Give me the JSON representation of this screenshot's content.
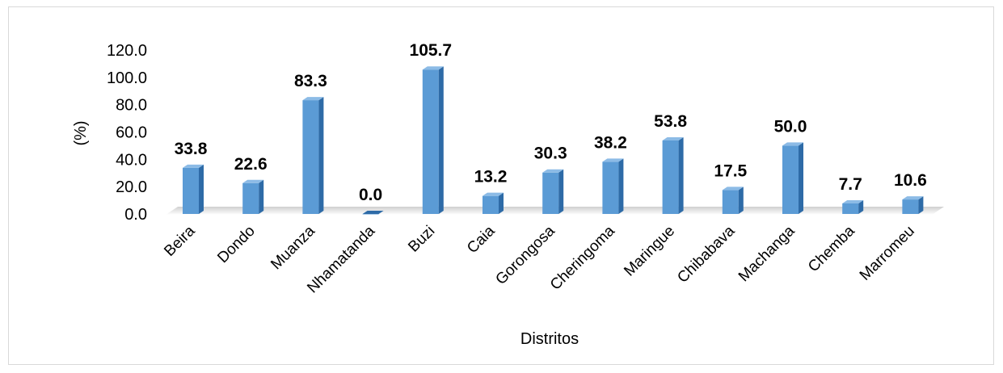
{
  "chart_data": {
    "type": "bar",
    "title": "",
    "xlabel": "Distritos",
    "ylabel": "(%)",
    "ylim": [
      0,
      120
    ],
    "yticks": [
      "0.0",
      "20.0",
      "40.0",
      "60.0",
      "80.0",
      "100.0",
      "120.0"
    ],
    "ytick_values": [
      0,
      20,
      40,
      60,
      80,
      100,
      120
    ],
    "categories": [
      "Beira",
      "Dondo",
      "Muanza",
      "Nhamatanda",
      "Buzi",
      "Caia",
      "Gorongosa",
      "Cheringoma",
      "Maringue",
      "Chibabava",
      "Machanga",
      "Chemba",
      "Marromeu"
    ],
    "values": [
      33.8,
      22.6,
      83.3,
      0.0,
      105.7,
      13.2,
      30.3,
      38.2,
      53.8,
      17.5,
      50.0,
      7.7,
      10.6
    ],
    "data_labels": [
      "33.8",
      "22.6",
      "83.3",
      "0.0",
      "105.7",
      "13.2",
      "30.3",
      "38.2",
      "53.8",
      "17.5",
      "50.0",
      "7.7",
      "10.6"
    ],
    "grid": false,
    "legend": "none",
    "colors": {
      "bar_front": "#5b9bd5",
      "bar_side": "#2e6ba7",
      "bar_top": "#8cbbe6",
      "floor": "#d9d9d9"
    }
  }
}
